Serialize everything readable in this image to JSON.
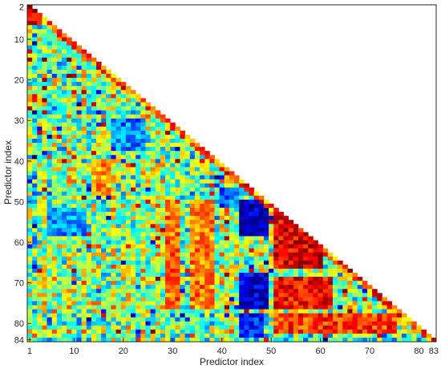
{
  "chart_data": {
    "type": "heatmap",
    "title": "",
    "xlabel": "Predictor index",
    "ylabel": "Predictor index",
    "n": 84,
    "layout": "lower-triangular",
    "x_ticks": [
      {
        "value": 1,
        "label": "1"
      },
      {
        "value": 10,
        "label": "10"
      },
      {
        "value": 20,
        "label": "20"
      },
      {
        "value": 30,
        "label": "30"
      },
      {
        "value": 40,
        "label": "40"
      },
      {
        "value": 50,
        "label": "50"
      },
      {
        "value": 60,
        "label": "60"
      },
      {
        "value": 70,
        "label": "70"
      },
      {
        "value": 80,
        "label": "80"
      },
      {
        "value": 83,
        "label": "83"
      }
    ],
    "y_ticks": [
      {
        "value": 2,
        "label": "2"
      },
      {
        "value": 10,
        "label": "10"
      },
      {
        "value": 20,
        "label": "20"
      },
      {
        "value": 30,
        "label": "30"
      },
      {
        "value": 40,
        "label": "40"
      },
      {
        "value": 50,
        "label": "50"
      },
      {
        "value": 60,
        "label": "60"
      },
      {
        "value": 70,
        "label": "70"
      },
      {
        "value": 80,
        "label": "80"
      },
      {
        "value": 84,
        "label": "84"
      }
    ],
    "colormap": "jet",
    "value_range": [
      -1,
      1
    ],
    "grid": false,
    "colors": {
      "frame": "#262626",
      "tick_text": "#262626",
      "background": "#ffffff"
    },
    "blocks": [
      {
        "x_range": [
          44,
          49
        ],
        "y_range": [
          50,
          58
        ],
        "value": -0.9
      },
      {
        "x_range": [
          44,
          49
        ],
        "y_range": [
          68,
          76
        ],
        "value": -0.85
      },
      {
        "x_range": [
          44,
          48
        ],
        "y_range": [
          78,
          83
        ],
        "value": -0.7
      },
      {
        "x_range": [
          51,
          60
        ],
        "y_range": [
          53,
          66
        ],
        "value": 0.8
      },
      {
        "x_range": [
          51,
          62
        ],
        "y_range": [
          69,
          76
        ],
        "value": 0.75
      },
      {
        "x_range": [
          51,
          75
        ],
        "y_range": [
          78,
          82
        ],
        "value": 0.65
      },
      {
        "x_range": [
          29,
          31
        ],
        "y_range": [
          50,
          76
        ],
        "value": 0.55
      },
      {
        "x_range": [
          34,
          38
        ],
        "y_range": [
          50,
          76
        ],
        "value": 0.5
      },
      {
        "x_range": [
          1,
          3
        ],
        "y_range": [
          2,
          6
        ],
        "value": 0.85
      },
      {
        "x_range": [
          5,
          12
        ],
        "y_range": [
          52,
          58
        ],
        "value": -0.45
      },
      {
        "x_range": [
          18,
          24
        ],
        "y_range": [
          30,
          37
        ],
        "value": -0.5
      },
      {
        "x_range": [
          40,
          43
        ],
        "y_range": [
          47,
          51
        ],
        "value": -0.55
      },
      {
        "x_range": [
          14,
          17
        ],
        "y_range": [
          40,
          48
        ],
        "value": 0.45
      }
    ]
  }
}
